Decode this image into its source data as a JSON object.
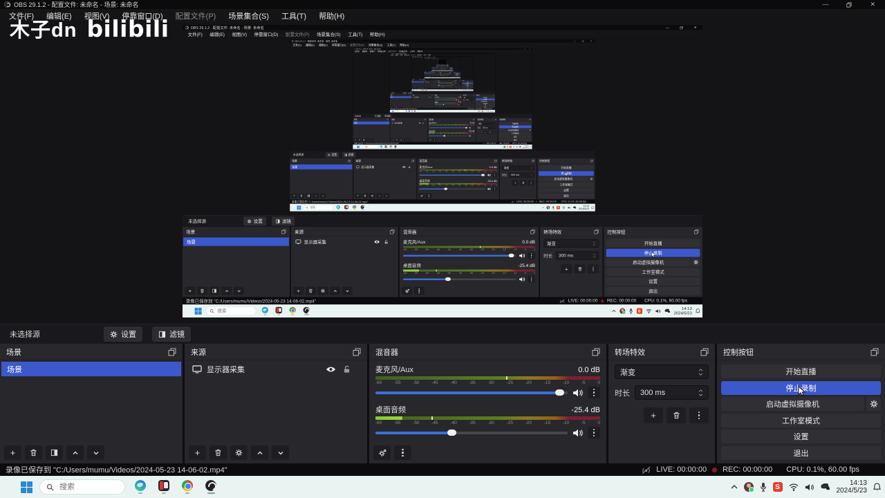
{
  "colors": {
    "accent_blue": "#3d58cb",
    "slider_blue": "#3e6fd9",
    "meter_green_bright": "#8fd03c",
    "rec_red": "#8a1d26",
    "taskbar_bg": "#e9f4f2",
    "panel_bg": "#27272c",
    "sogou_red": "#e2402f"
  },
  "window": {
    "title": "OBS 29.1.2 - 配置文件: 未命名 - 场景: 未命名",
    "minimize": "—",
    "close": "✕"
  },
  "menu": {
    "items": [
      "文件(F)",
      "编辑(E)",
      "视图(V)",
      "停靠窗口(D)",
      "配置文件(P)",
      "场景集合(S)",
      "工具(T)",
      "帮助(H)"
    ]
  },
  "watermark": {
    "name": "木子dn",
    "brand": "bilibili"
  },
  "source_toolbar": {
    "label": "未选择源",
    "settings": "设置",
    "filters": "滤镜"
  },
  "scenes_panel": {
    "title": "场景",
    "items": [
      "场景"
    ],
    "selected_index": 0
  },
  "sources_panel": {
    "title": "来源",
    "rows": [
      {
        "label": "显示器采集"
      }
    ]
  },
  "mixer_panel": {
    "title": "混音器",
    "scale_ticks": [
      "-60",
      "-55",
      "-50",
      "-45",
      "-40",
      "-35",
      "-30",
      "-25",
      "-20",
      "-15",
      "-10",
      "-5",
      "0"
    ],
    "channels": [
      {
        "name": "麦克风/Aux",
        "db": "0.0 dB",
        "slider_pct": 96,
        "bright_pct": 0,
        "peak_pct": 58
      },
      {
        "name": "桌面音频",
        "db": "-25.4 dB",
        "slider_pct": 40,
        "bright_pct": 12,
        "peak_pct": 25
      }
    ]
  },
  "transitions_panel": {
    "title": "转场特效",
    "transition": "渐变",
    "duration_label": "时长",
    "duration": "300 ms"
  },
  "controls_panel": {
    "title": "控制按钮",
    "buttons": [
      "开始直播",
      "停止录制",
      "启动虚拟摄像机",
      "工作室模式",
      "设置",
      "退出"
    ],
    "active_index": 1
  },
  "status_bar": {
    "message": "录像已保存到 \"C:/Users/mumu/Videos/2024-05-23 14-06-02.mp4\"",
    "live": "LIVE: 00:00:00",
    "rec": "REC: 00:00:00",
    "cpu": "CPU: 0.1%, 60.00 fps"
  },
  "taskbar": {
    "search_placeholder": "搜索",
    "time": "14:13",
    "date": "2024/5/23"
  },
  "preview": {
    "capture_scale": 0.5875,
    "recursion_levels": 8
  },
  "icons": {
    "obs-logo": "swirl-circle",
    "popout": "overlapping-squares",
    "trash": "trash-can",
    "gear": "gear",
    "filter": "half-filled-square",
    "eye": "eye",
    "lock": "open-padlock",
    "monitor": "display-frame",
    "speaker": "speaker-waves",
    "dots": "vertical-ellipsis",
    "signal": "broadcast-off",
    "start": "windows-grid",
    "search": "magnifier",
    "bell": "notification-bell"
  }
}
